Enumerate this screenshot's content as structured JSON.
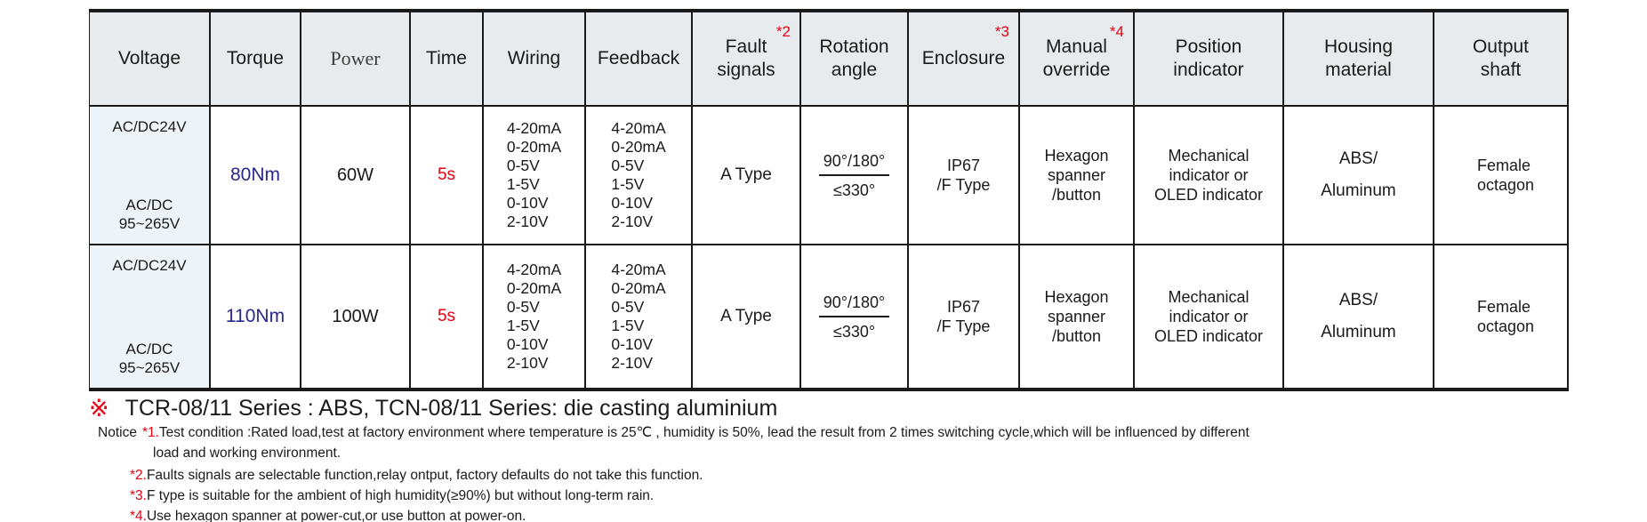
{
  "colors": {
    "accent_red": "#e60012",
    "torque_blue": "#28288c",
    "header_bg": "#e7ebee",
    "voltage_bg": "#edf4f9",
    "border": "#1a1a1a"
  },
  "table": {
    "columns": [
      {
        "label": "Voltage"
      },
      {
        "label": "Torque"
      },
      {
        "label": "Power"
      },
      {
        "label": "Time"
      },
      {
        "label": "Wiring"
      },
      {
        "label": "Feedback"
      },
      {
        "label": [
          "Fault",
          "signals"
        ],
        "sup": "*2"
      },
      {
        "label": [
          "Rotation",
          "angle"
        ]
      },
      {
        "label": "Enclosure",
        "sup": "*3"
      },
      {
        "label": [
          "Manual",
          "override"
        ],
        "sup": "*4"
      },
      {
        "label": [
          "Position",
          "indicator"
        ]
      },
      {
        "label": [
          "Housing",
          "material"
        ]
      },
      {
        "label": [
          "Output",
          "shaft"
        ]
      }
    ],
    "rows": [
      {
        "voltage_top": "AC/DC24V",
        "voltage_bottom": [
          "AC/DC",
          "95~265V"
        ],
        "torque": "80Nm",
        "power": "60W",
        "time": "5s",
        "wiring": [
          "4-20mA",
          "0-20mA",
          "0-5V",
          "1-5V",
          "0-10V",
          "2-10V"
        ],
        "feedback": [
          "4-20mA",
          "0-20mA",
          "0-5V",
          "1-5V",
          "0-10V",
          "2-10V"
        ],
        "fault_signals": "A Type",
        "rotation_top": "90°/180°",
        "rotation_bottom": "≤330°",
        "enclosure": [
          "IP67",
          "/F Type"
        ],
        "manual_override": [
          "Hexagon",
          "spanner",
          "/button"
        ],
        "position_indicator": [
          "Mechanical",
          "indicator or",
          "OLED indicator"
        ],
        "housing_material": [
          "ABS/",
          "Aluminum"
        ],
        "output_shaft": [
          "Female",
          "octagon"
        ]
      },
      {
        "voltage_top": "AC/DC24V",
        "voltage_bottom": [
          "AC/DC",
          "95~265V"
        ],
        "torque": "110Nm",
        "power": "100W",
        "time": "5s",
        "wiring": [
          "4-20mA",
          "0-20mA",
          "0-5V",
          "1-5V",
          "0-10V",
          "2-10V"
        ],
        "feedback": [
          "4-20mA",
          "0-20mA",
          "0-5V",
          "1-5V",
          "0-10V",
          "2-10V"
        ],
        "fault_signals": "A Type",
        "rotation_top": "90°/180°",
        "rotation_bottom": "≤330°",
        "enclosure": [
          "IP67",
          "/F Type"
        ],
        "manual_override": [
          "Hexagon",
          "spanner",
          "/button"
        ],
        "position_indicator": [
          "Mechanical",
          "indicator or",
          "OLED indicator"
        ],
        "housing_material": [
          "ABS/",
          "Aluminum"
        ],
        "output_shaft": [
          "Female",
          "octagon"
        ]
      }
    ]
  },
  "footnote": {
    "symbol": "※",
    "text": "TCR-08/11 Series : ABS, TCN-08/11 Series: die casting aluminium"
  },
  "notice": {
    "label": "Notice",
    "items": [
      {
        "prefix": "*1.",
        "line1": "Test condition :Rated load,test at factory environment where temperature is 25℃ , humidity is 50%, lead the result from 2 times switching cycle,which will be influenced by different",
        "line2": "load and working environment."
      },
      {
        "prefix": "*2.",
        "text": "Faults signals are selectable function,relay ontput, factory defaults do not take this function."
      },
      {
        "prefix": "*3.",
        "text": "F type is suitable for the ambient of high humidity(≥90%) but without long-term rain."
      },
      {
        "prefix": "*4.",
        "text": "Use hexagon spanner at power-cut,or use button at power-on."
      }
    ]
  }
}
